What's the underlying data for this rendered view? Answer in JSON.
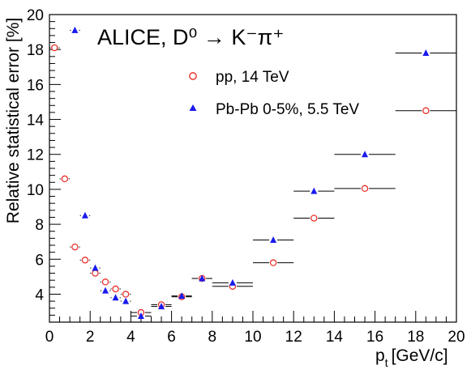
{
  "chart_data": {
    "type": "scatter",
    "title": "ALICE, D⁰ → K⁻π⁺",
    "xlabel": "p",
    "xlabel_subscript": "t",
    "xlabel_unit": "[GeV/c]",
    "ylabel": "Relative statistical error [%]",
    "xlim": [
      0,
      20
    ],
    "ylim": [
      2.4,
      20
    ],
    "x_ticks": [
      0,
      2,
      4,
      6,
      8,
      10,
      12,
      14,
      16,
      18,
      20
    ],
    "y_ticks": [
      4,
      6,
      8,
      10,
      12,
      14,
      16,
      18,
      20
    ],
    "legend_position": "top-center",
    "series": [
      {
        "name": "pp, 14 TeV",
        "marker": "open-circle",
        "color": "#e8231f",
        "points": [
          {
            "x": 0.25,
            "xlo": 0.0,
            "xhi": 0.5,
            "y": 18.1
          },
          {
            "x": 0.75,
            "xlo": 0.5,
            "xhi": 1.0,
            "y": 10.6
          },
          {
            "x": 1.25,
            "xlo": 1.0,
            "xhi": 1.5,
            "y": 6.7
          },
          {
            "x": 1.75,
            "xlo": 1.5,
            "xhi": 2.0,
            "y": 5.95
          },
          {
            "x": 2.25,
            "xlo": 2.0,
            "xhi": 2.5,
            "y": 5.2
          },
          {
            "x": 2.75,
            "xlo": 2.5,
            "xhi": 3.0,
            "y": 4.7
          },
          {
            "x": 3.25,
            "xlo": 3.0,
            "xhi": 3.5,
            "y": 4.3
          },
          {
            "x": 3.75,
            "xlo": 3.5,
            "xhi": 4.0,
            "y": 4.0
          },
          {
            "x": 4.5,
            "xlo": 4.0,
            "xhi": 5.0,
            "y": 2.95
          },
          {
            "x": 5.5,
            "xlo": 5.0,
            "xhi": 6.0,
            "y": 3.4
          },
          {
            "x": 6.5,
            "xlo": 6.0,
            "xhi": 7.0,
            "y": 3.85
          },
          {
            "x": 7.5,
            "xlo": 7.0,
            "xhi": 8.0,
            "y": 4.9
          },
          {
            "x": 9.0,
            "xlo": 8.0,
            "xhi": 10.0,
            "y": 4.45
          },
          {
            "x": 11.0,
            "xlo": 10.0,
            "xhi": 12.0,
            "y": 5.8
          },
          {
            "x": 13.0,
            "xlo": 12.0,
            "xhi": 14.0,
            "y": 8.35
          },
          {
            "x": 15.5,
            "xlo": 14.0,
            "xhi": 17.0,
            "y": 10.05
          },
          {
            "x": 18.5,
            "xlo": 17.0,
            "xhi": 20.0,
            "y": 14.5
          }
        ]
      },
      {
        "name": "Pb-Pb 0-5%, 5.5 TeV",
        "marker": "filled-triangle",
        "color": "#1a1aee",
        "points": [
          {
            "x": 1.25,
            "xlo": 1.0,
            "xhi": 1.5,
            "y": 19.1
          },
          {
            "x": 1.75,
            "xlo": 1.5,
            "xhi": 2.0,
            "y": 8.5
          },
          {
            "x": 2.25,
            "xlo": 2.0,
            "xhi": 2.5,
            "y": 5.5
          },
          {
            "x": 2.75,
            "xlo": 2.5,
            "xhi": 3.0,
            "y": 4.2
          },
          {
            "x": 3.25,
            "xlo": 3.0,
            "xhi": 3.5,
            "y": 3.8
          },
          {
            "x": 3.75,
            "xlo": 3.5,
            "xhi": 4.0,
            "y": 3.6
          },
          {
            "x": 4.5,
            "xlo": 4.0,
            "xhi": 5.0,
            "y": 2.75
          },
          {
            "x": 5.5,
            "xlo": 5.0,
            "xhi": 6.0,
            "y": 3.3
          },
          {
            "x": 6.5,
            "xlo": 6.0,
            "xhi": 7.0,
            "y": 3.9
          },
          {
            "x": 7.5,
            "xlo": 7.0,
            "xhi": 8.0,
            "y": 4.9
          },
          {
            "x": 9.0,
            "xlo": 8.0,
            "xhi": 10.0,
            "y": 4.65
          },
          {
            "x": 11.0,
            "xlo": 10.0,
            "xhi": 12.0,
            "y": 7.1
          },
          {
            "x": 13.0,
            "xlo": 12.0,
            "xhi": 14.0,
            "y": 9.9
          },
          {
            "x": 15.5,
            "xlo": 14.0,
            "xhi": 17.0,
            "y": 12.0
          },
          {
            "x": 18.5,
            "xlo": 17.0,
            "xhi": 20.0,
            "y": 17.8
          }
        ]
      }
    ]
  }
}
